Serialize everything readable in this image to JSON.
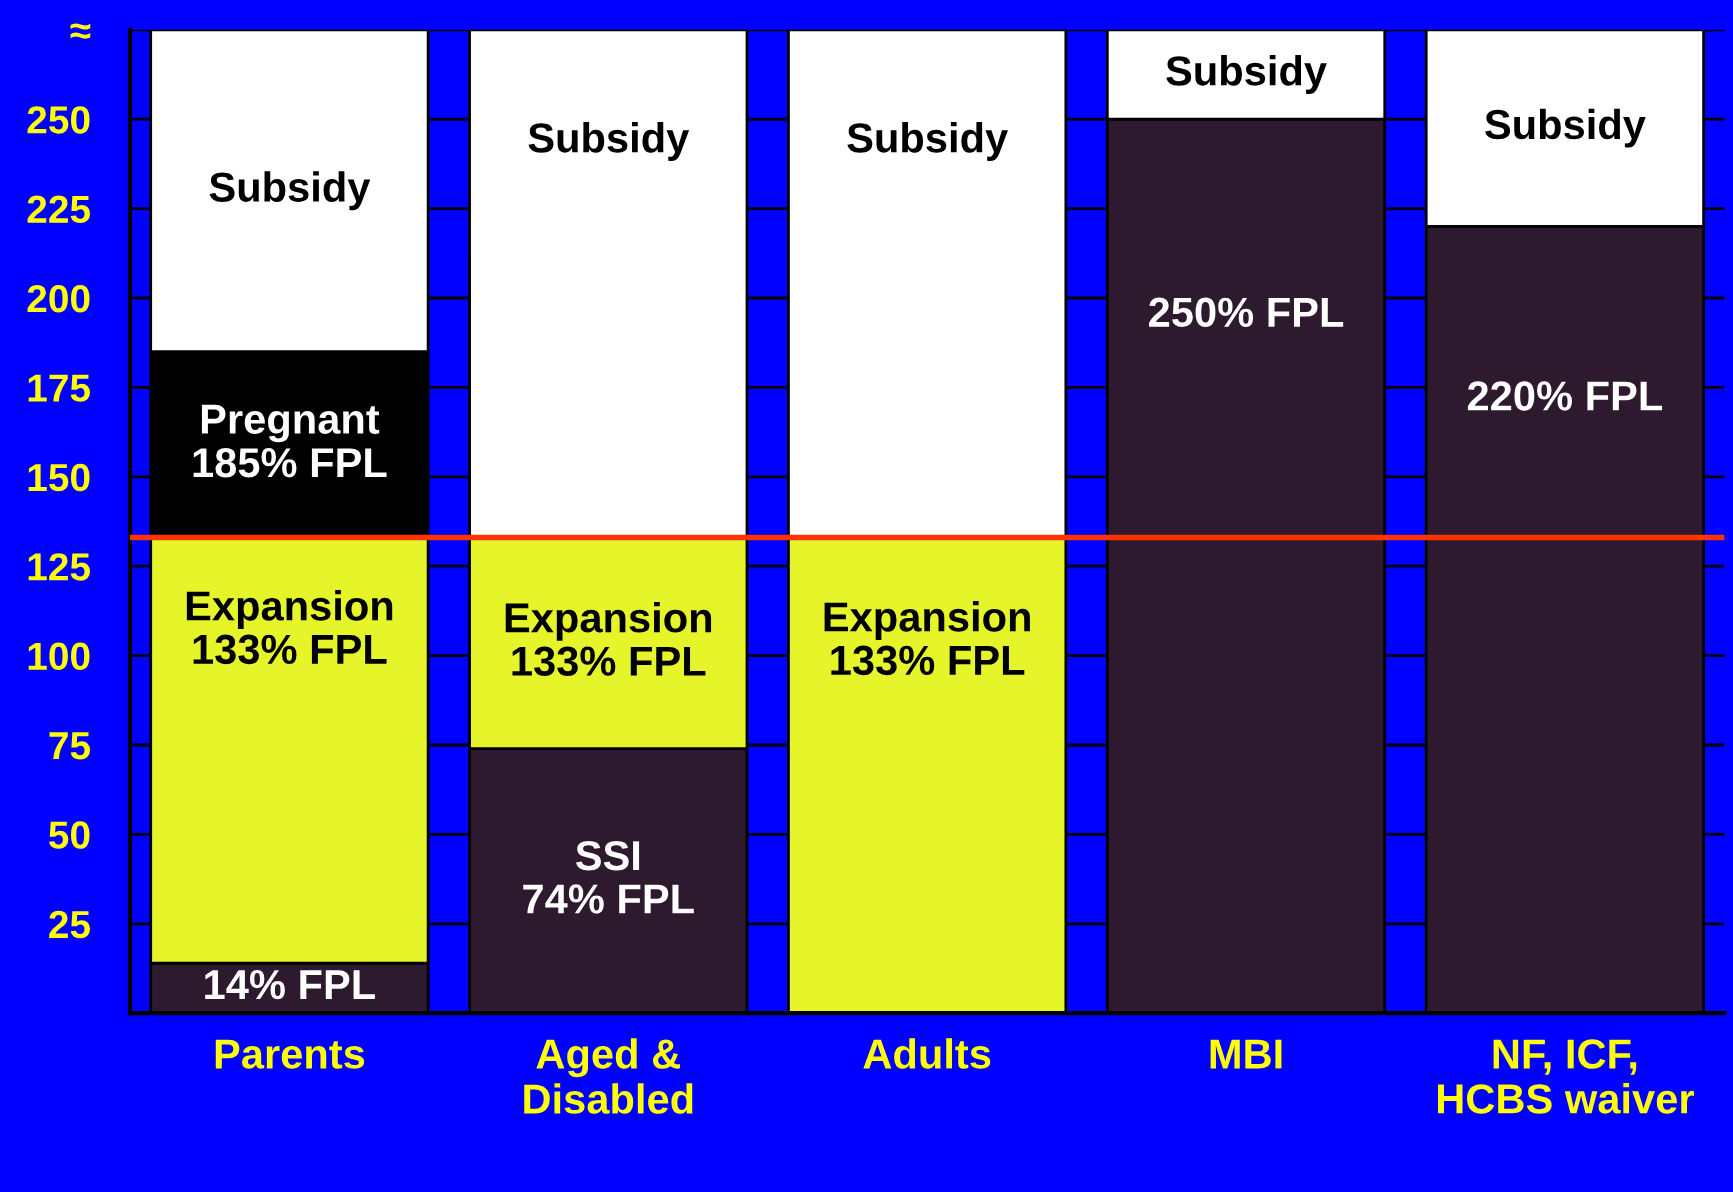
{
  "chart_data": {
    "type": "bar",
    "stacked": true,
    "categories": [
      "Parents",
      "Aged &\nDisabled",
      "Adults",
      "MBI",
      "NF, ICF,\nHCBS waiver"
    ],
    "series": [
      {
        "color": "#2e1a2e",
        "values": [
          14,
          74,
          null,
          250,
          220
        ],
        "value_labels": [
          "14% FPL",
          "SSI\n74% FPL",
          null,
          "250% FPL",
          "220% FPL"
        ]
      },
      {
        "color": "#e6f52a",
        "values": [
          119,
          59,
          133,
          null,
          null
        ],
        "value_labels": [
          "Expansion\n133% FPL",
          "Expansion\n133% FPL",
          "Expansion\n133% FPL",
          null,
          null
        ]
      },
      {
        "color": "#000000",
        "values": [
          52,
          null,
          null,
          null,
          null
        ],
        "value_labels": [
          "Pregnant\n185% FPL",
          null,
          null,
          null,
          null
        ]
      },
      {
        "color": "#ffffff",
        "values": [
          90,
          142,
          142,
          25,
          55
        ],
        "value_labels": [
          "Subsidy",
          "Subsidy",
          "Subsidy",
          "Subsidy",
          "Subsidy"
        ]
      }
    ],
    "ylim": [
      0,
      275
    ],
    "yticks": [
      25,
      50,
      75,
      100,
      125,
      150,
      175,
      200,
      225,
      250,
      {
        "value": 275,
        "label": "≈"
      }
    ],
    "grid": "y",
    "ref_lines": [
      {
        "axis": "y",
        "value": 133,
        "color": "#ff3300"
      }
    ]
  }
}
